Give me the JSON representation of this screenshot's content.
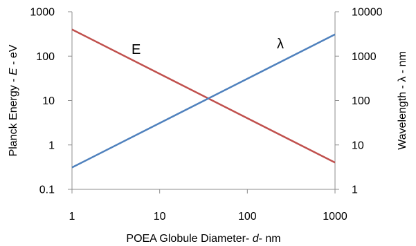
{
  "chart_data": {
    "type": "line",
    "xscale": "log",
    "xlim": [
      1,
      1000
    ],
    "x_ticks": [
      "1",
      "10",
      "100",
      "1000"
    ],
    "xlabel_parts": [
      "POEA Globule Diameter- ",
      "d",
      "- nm"
    ],
    "left_axis": {
      "scale": "log",
      "lim": [
        0.1,
        1000
      ],
      "ticks": [
        "0.1",
        "1",
        "10",
        "100",
        "1000"
      ],
      "label_parts": [
        "Planck  Energy  - ",
        "E",
        " - eV"
      ]
    },
    "right_axis": {
      "scale": "log",
      "lim": [
        1,
        10000
      ],
      "ticks": [
        "1",
        "10",
        "100",
        "1000",
        "10000"
      ],
      "label_parts": [
        "Wavelength  - ",
        "λ",
        " - nm"
      ]
    },
    "series": [
      {
        "name": "E",
        "axis": "left",
        "color": "#c0504d",
        "x": [
          1,
          1000
        ],
        "y": [
          400,
          0.4
        ]
      },
      {
        "name": "λ",
        "axis": "right",
        "color": "#4f81bd",
        "x": [
          1,
          1000
        ],
        "y": [
          3.1,
          3100
        ]
      }
    ],
    "grid": false,
    "legend": "none"
  }
}
